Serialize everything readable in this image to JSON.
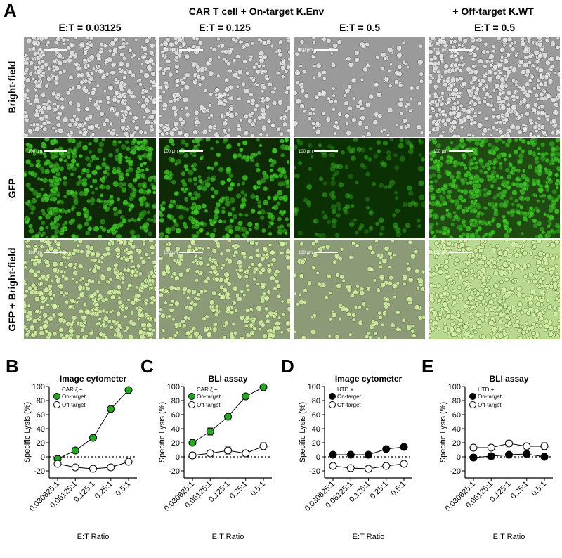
{
  "panel_a": {
    "letter": "A",
    "group_header_1": "CAR T cell + On-target K.Env",
    "group_header_2": "+ Off-target K.WT",
    "columns": [
      "E:T = 0.03125",
      "E:T = 0.125",
      "E:T = 0.5",
      "E:T = 0.5"
    ],
    "rows": [
      "Bright-field",
      "GFP",
      "GFP + Bright-field"
    ],
    "scale_bar": "100 µm"
  },
  "chart_data": [
    {
      "type": "line",
      "panel_letter": "B",
      "title": "Image cytometer",
      "xlabel": "E:T Ratio",
      "ylabel": "Specific Lysis (%)",
      "categories": [
        "0.030625:1",
        "0.06125:1",
        "0.125:1",
        "0.25:1",
        "0.5:1"
      ],
      "yticks": [
        "100",
        "80",
        "60",
        "40",
        "20",
        "0",
        "-20"
      ],
      "ylim": [
        -30,
        100
      ],
      "legend_header": "CAR.ζ +",
      "series": [
        {
          "name": "On-target",
          "values": [
            -3,
            9,
            27,
            68,
            95
          ],
          "errors": [
            2,
            4,
            2,
            2,
            4
          ],
          "fill": "#22a822"
        },
        {
          "name": "Off-target",
          "values": [
            -10,
            -15,
            -17,
            -15,
            -7
          ],
          "errors": [
            2,
            3,
            2,
            3,
            3
          ],
          "fill": "#ffffff"
        }
      ]
    },
    {
      "type": "line",
      "panel_letter": "C",
      "title": "BLI assay",
      "xlabel": "E:T Ratio",
      "ylabel": "Specific Lysis (%)",
      "categories": [
        "0.030625:1",
        "0.06125:1",
        "0.125:1",
        "0.25:1",
        "0.5:1"
      ],
      "yticks": [
        "100",
        "80",
        "60",
        "40",
        "20",
        "0",
        "-20"
      ],
      "ylim": [
        -30,
        100
      ],
      "legend_header": "CAR.ζ +",
      "series": [
        {
          "name": "On-target",
          "values": [
            20,
            36,
            57,
            86,
            99
          ],
          "errors": [
            2,
            5,
            2,
            2,
            1
          ],
          "fill": "#22a822"
        },
        {
          "name": "Off-target",
          "values": [
            2,
            5,
            9,
            5,
            15
          ],
          "errors": [
            1,
            2,
            5,
            4,
            5
          ],
          "fill": "#ffffff"
        }
      ]
    },
    {
      "type": "line",
      "panel_letter": "D",
      "title": "Image cytometer",
      "xlabel": "E:T Ratio",
      "ylabel": "Specific Lysis (%)",
      "categories": [
        "0.030625:1",
        "0.06125:1",
        "0.125:1",
        "0.25:1",
        "0.5:1"
      ],
      "yticks": [
        "100",
        "80",
        "60",
        "40",
        "20",
        "0",
        "-20"
      ],
      "ylim": [
        -30,
        100
      ],
      "legend_header": "UTD +",
      "series": [
        {
          "name": "On-target",
          "values": [
            3,
            3,
            3,
            11,
            14
          ],
          "errors": [
            3,
            3,
            1,
            1,
            1
          ],
          "fill": "#000000"
        },
        {
          "name": "Off-target",
          "values": [
            -13,
            -16,
            -17,
            -13,
            -10
          ],
          "errors": [
            1,
            1,
            1,
            3,
            2
          ],
          "fill": "#ffffff"
        }
      ]
    },
    {
      "type": "line",
      "panel_letter": "E",
      "title": "BLI assay",
      "xlabel": "E:T Ratio",
      "ylabel": "Specific Lysis (%)",
      "categories": [
        "0.030625:1",
        "0.06125:1",
        "0.125:1",
        "0.25:1",
        "0.5:1"
      ],
      "yticks": [
        "100",
        "80",
        "60",
        "40",
        "20",
        "0",
        "-20"
      ],
      "ylim": [
        -30,
        100
      ],
      "legend_header": "UTD +",
      "series": [
        {
          "name": "On-target",
          "values": [
            -1,
            1,
            3,
            4,
            0
          ],
          "errors": [
            1,
            4,
            2,
            2,
            1
          ],
          "fill": "#000000"
        },
        {
          "name": "Off-target",
          "values": [
            13,
            13,
            19,
            15,
            15
          ],
          "errors": [
            1,
            2,
            4,
            2,
            5
          ],
          "fill": "#ffffff"
        }
      ]
    }
  ]
}
